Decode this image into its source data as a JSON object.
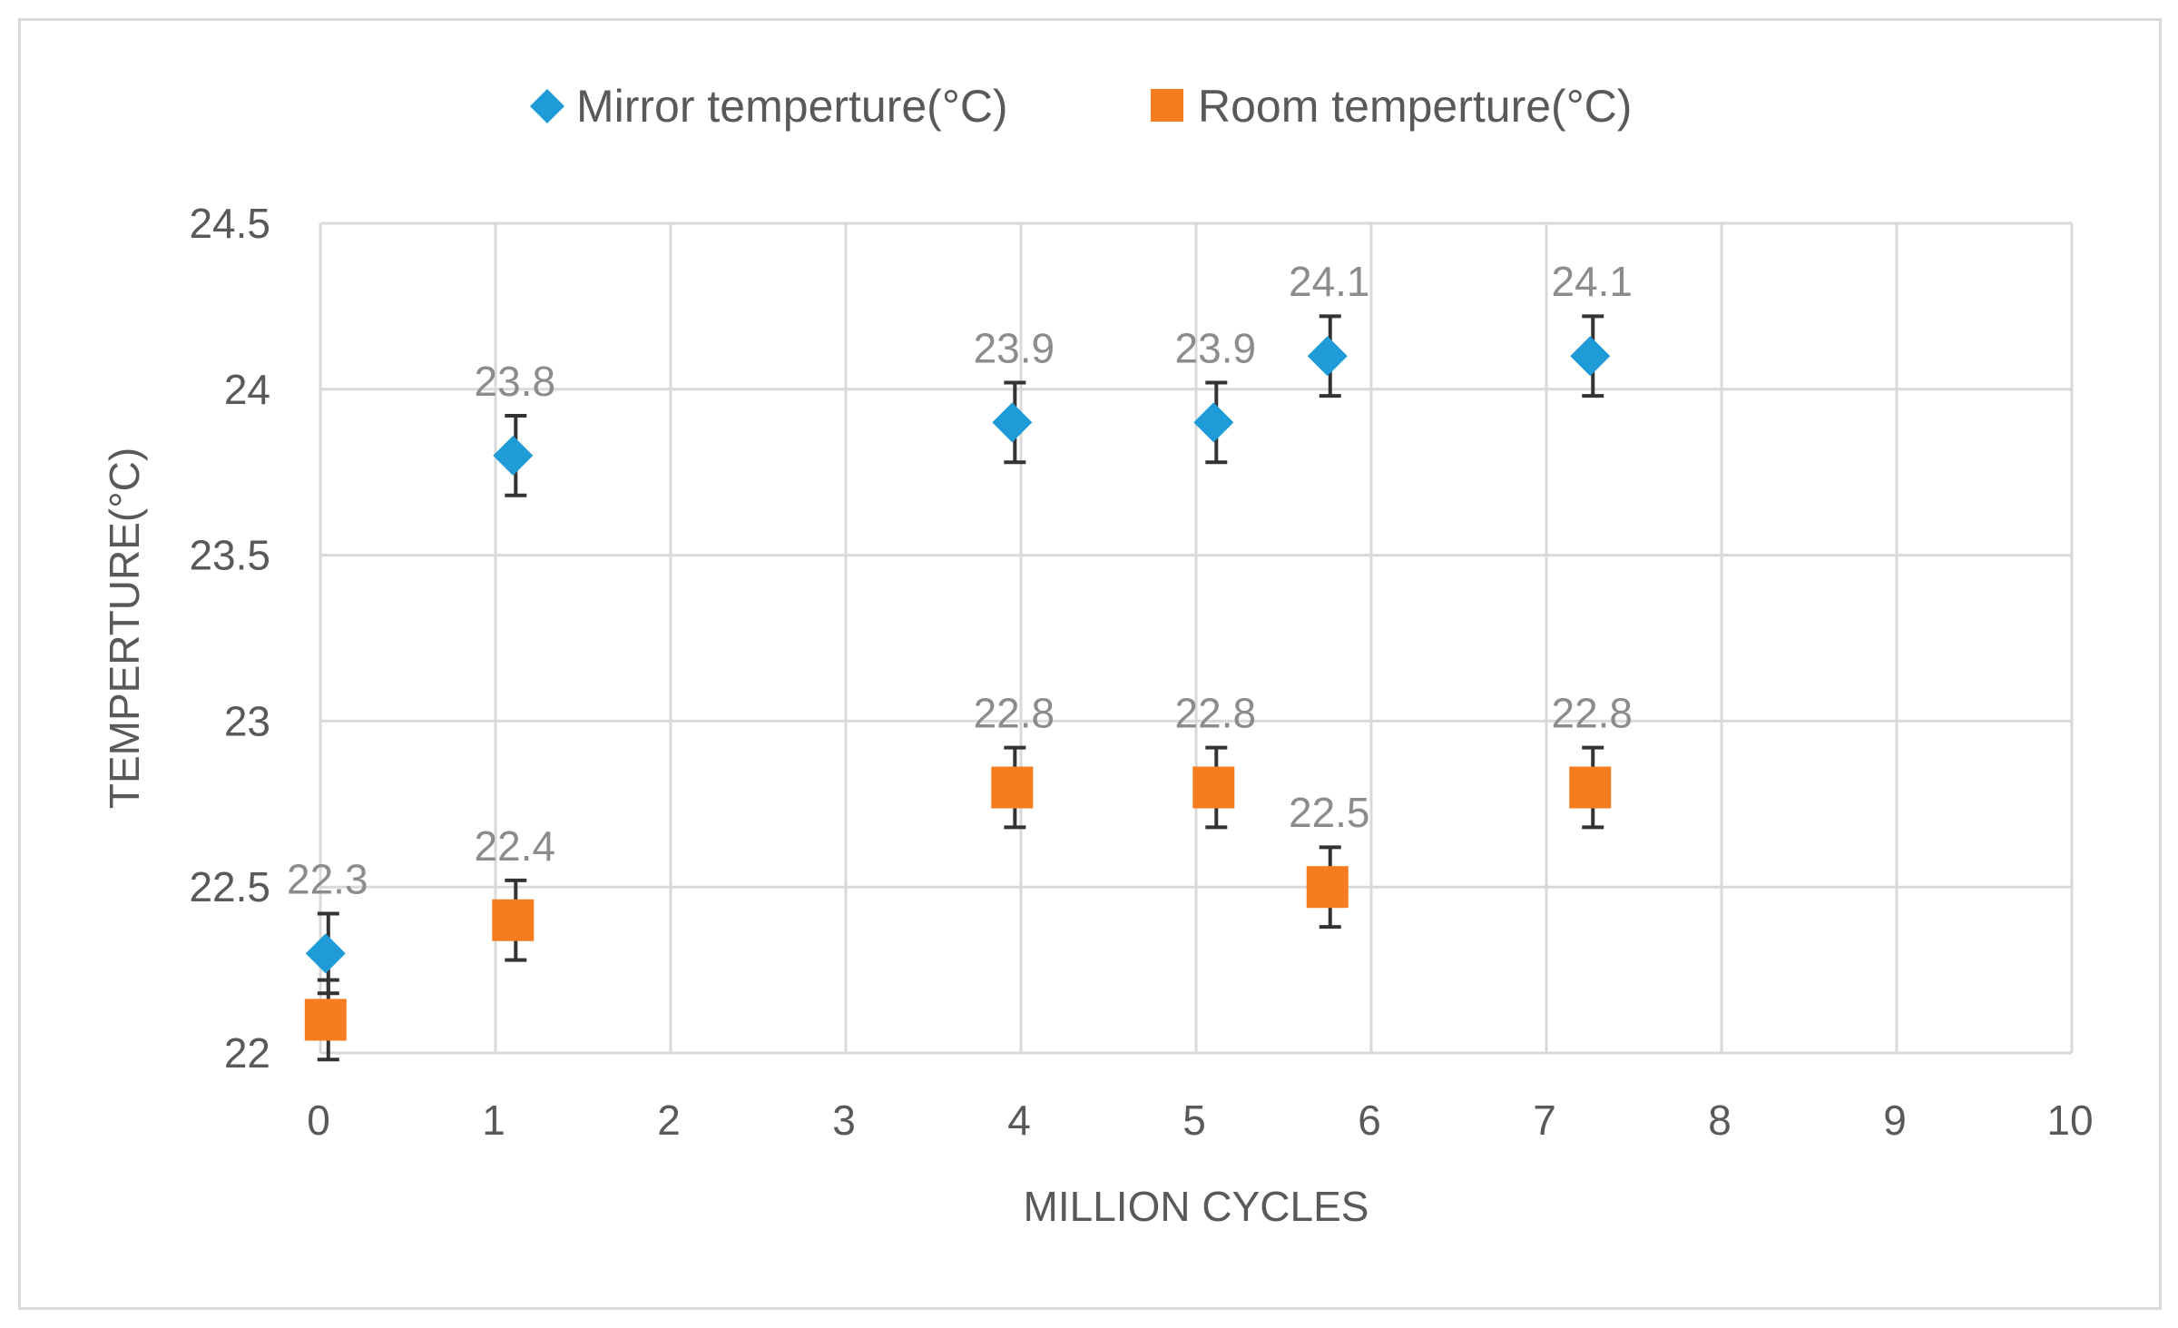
{
  "chart_data": {
    "type": "scatter",
    "title": "",
    "xlabel": "MILLION CYCLES",
    "ylabel": "TEMPERTURE(°C)",
    "xlim": [
      0,
      10
    ],
    "ylim": [
      22,
      24.5
    ],
    "x_ticks": [
      "0",
      "1",
      "2",
      "3",
      "4",
      "5",
      "6",
      "7",
      "8",
      "9",
      "10"
    ],
    "y_ticks": [
      "22",
      "22.5",
      "23",
      "23.5",
      "24",
      "24.5"
    ],
    "grid": true,
    "legend_position": "top",
    "error_bar": 0.12,
    "series": [
      {
        "name": "Mirror temperture(°C)",
        "marker": "diamond",
        "color": "#1f9bd7",
        "points": [
          {
            "x": 0.03,
            "y": 22.3,
            "label": "22.3"
          },
          {
            "x": 1.1,
            "y": 23.8,
            "label": "23.8"
          },
          {
            "x": 3.95,
            "y": 23.9,
            "label": "23.9"
          },
          {
            "x": 5.1,
            "y": 23.9,
            "label": "23.9"
          },
          {
            "x": 5.75,
            "y": 24.1,
            "label": "24.1"
          },
          {
            "x": 7.25,
            "y": 24.1,
            "label": "24.1"
          }
        ]
      },
      {
        "name": "Room temperture(°C)",
        "marker": "square",
        "color": "#f57c1f",
        "points": [
          {
            "x": 0.03,
            "y": 22.1,
            "label": ""
          },
          {
            "x": 1.1,
            "y": 22.4,
            "label": "22.4"
          },
          {
            "x": 3.95,
            "y": 22.8,
            "label": "22.8"
          },
          {
            "x": 5.1,
            "y": 22.8,
            "label": "22.8"
          },
          {
            "x": 5.75,
            "y": 22.5,
            "label": "22.5"
          },
          {
            "x": 7.25,
            "y": 22.8,
            "label": "22.8"
          }
        ]
      }
    ]
  }
}
